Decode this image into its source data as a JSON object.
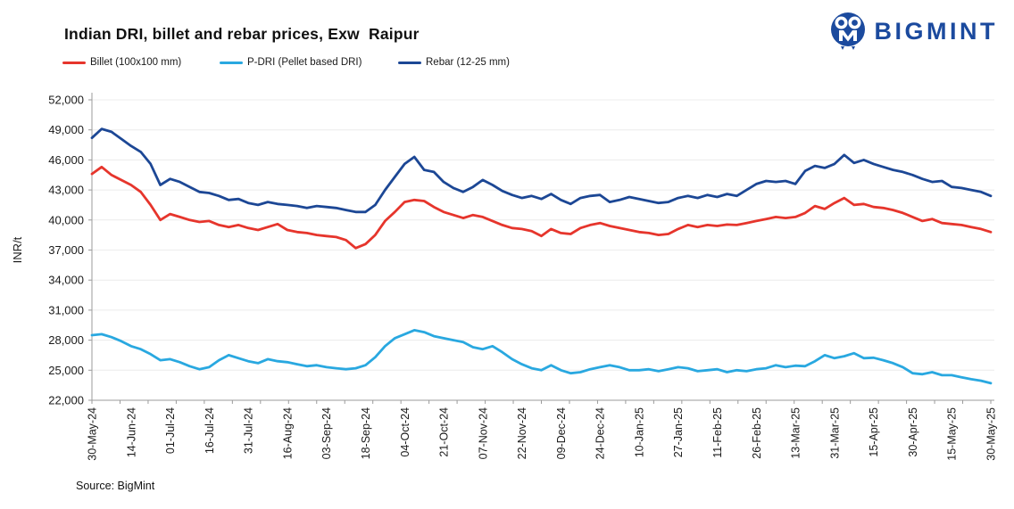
{
  "header": {
    "title": "Indian DRI, billet and rebar prices, Exw  Raipur",
    "logo_text": "BIGMINT",
    "logo_color": "#1b4a9e"
  },
  "legend": [
    {
      "label": "Billet (100x100 mm)",
      "color": "#e6352c"
    },
    {
      "label": "P-DRI (Pellet based DRI)",
      "color": "#29a8e0"
    },
    {
      "label": "Rebar (12-25 mm)",
      "color": "#1c4795"
    }
  ],
  "footer": {
    "source": "Source: BigMint"
  },
  "chart_data": {
    "type": "line",
    "title": "Indian DRI, billet and rebar prices, Exw Raipur",
    "xlabel": "",
    "ylabel": "INR/t",
    "ylim": [
      22000,
      52000
    ],
    "ytick_step": 3000,
    "ytick_labels": [
      "22,000",
      "25,000",
      "28,000",
      "31,000",
      "34,000",
      "37,000",
      "40,000",
      "43,000",
      "46,000",
      "49,000",
      "52,000"
    ],
    "grid": true,
    "legend_position": "top",
    "points_per_label": 4,
    "x_tick_labels": [
      "30-May-24",
      "14-Jun-24",
      "01-Jul-24",
      "16-Jul-24",
      "31-Jul-24",
      "16-Aug-24",
      "03-Sep-24",
      "18-Sep-24",
      "04-Oct-24",
      "21-Oct-24",
      "07-Nov-24",
      "22-Nov-24",
      "09-Dec-24",
      "24-Dec-24",
      "10-Jan-25",
      "27-Jan-25",
      "11-Feb-25",
      "26-Feb-25",
      "13-Mar-25",
      "31-Mar-25",
      "15-Apr-25",
      "30-Apr-25",
      "15-May-25",
      "30-May-25"
    ],
    "series": [
      {
        "name": "Billet (100x100 mm)",
        "color": "#e6352c",
        "values": [
          44600,
          45300,
          44500,
          44000,
          43500,
          42800,
          41500,
          40000,
          40600,
          40300,
          40000,
          39800,
          39900,
          39500,
          39300,
          39500,
          39200,
          39000,
          39300,
          39600,
          39000,
          38800,
          38700,
          38500,
          38400,
          38300,
          38000,
          37200,
          37600,
          38500,
          39900,
          40800,
          41800,
          42000,
          41900,
          41300,
          40800,
          40500,
          40200,
          40500,
          40300,
          39900,
          39500,
          39200,
          39100,
          38900,
          38400,
          39100,
          38700,
          38600,
          39200,
          39500,
          39700,
          39400,
          39200,
          39000,
          38800,
          38700,
          38500,
          38600,
          39100,
          39500,
          39300,
          39500,
          39400,
          39550,
          39500,
          39700,
          39900,
          40100,
          40300,
          40200,
          40300,
          40700,
          41400,
          41100,
          41700,
          42200,
          41500,
          41600,
          41300,
          41200,
          41000,
          40700,
          40300,
          39900,
          40100,
          39700,
          39600,
          39500,
          39300,
          39100,
          38800
        ]
      },
      {
        "name": "P-DRI (Pellet based DRI)",
        "color": "#29a8e0",
        "values": [
          28500,
          28600,
          28300,
          27900,
          27400,
          27100,
          26600,
          26000,
          26100,
          25800,
          25400,
          25100,
          25300,
          26000,
          26500,
          26200,
          25900,
          25700,
          26100,
          25900,
          25800,
          25600,
          25400,
          25500,
          25300,
          25200,
          25100,
          25200,
          25500,
          26300,
          27400,
          28200,
          28600,
          29000,
          28800,
          28400,
          28200,
          28000,
          27800,
          27300,
          27100,
          27400,
          26800,
          26100,
          25600,
          25200,
          25000,
          25500,
          25000,
          24700,
          24800,
          25100,
          25300,
          25500,
          25300,
          25000,
          25000,
          25100,
          24900,
          25100,
          25300,
          25200,
          24900,
          25000,
          25100,
          24800,
          25000,
          24900,
          25100,
          25200,
          25500,
          25300,
          25450,
          25400,
          25900,
          26500,
          26200,
          26400,
          26700,
          26200,
          26250,
          26000,
          25700,
          25300,
          24700,
          24600,
          24800,
          24500,
          24500,
          24300,
          24100,
          23950,
          23700
        ]
      },
      {
        "name": "Rebar (12-25 mm)",
        "color": "#1c4795",
        "values": [
          48200,
          49100,
          48800,
          48100,
          47400,
          46800,
          45600,
          43500,
          44100,
          43800,
          43300,
          42800,
          42700,
          42400,
          42000,
          42100,
          41700,
          41500,
          41800,
          41600,
          41500,
          41400,
          41200,
          41400,
          41300,
          41200,
          41000,
          40800,
          40800,
          41500,
          43000,
          44300,
          45600,
          46300,
          45000,
          44800,
          43800,
          43200,
          42800,
          43300,
          44000,
          43500,
          42900,
          42500,
          42200,
          42400,
          42100,
          42600,
          42000,
          41600,
          42200,
          42400,
          42500,
          41800,
          42000,
          42300,
          42100,
          41900,
          41700,
          41800,
          42200,
          42400,
          42200,
          42500,
          42300,
          42600,
          42400,
          43000,
          43600,
          43900,
          43800,
          43900,
          43600,
          44900,
          45400,
          45200,
          45600,
          46500,
          45700,
          46000,
          45600,
          45300,
          45000,
          44800,
          44500,
          44100,
          43800,
          43900,
          43300,
          43200,
          43000,
          42800,
          42400
        ]
      }
    ]
  }
}
